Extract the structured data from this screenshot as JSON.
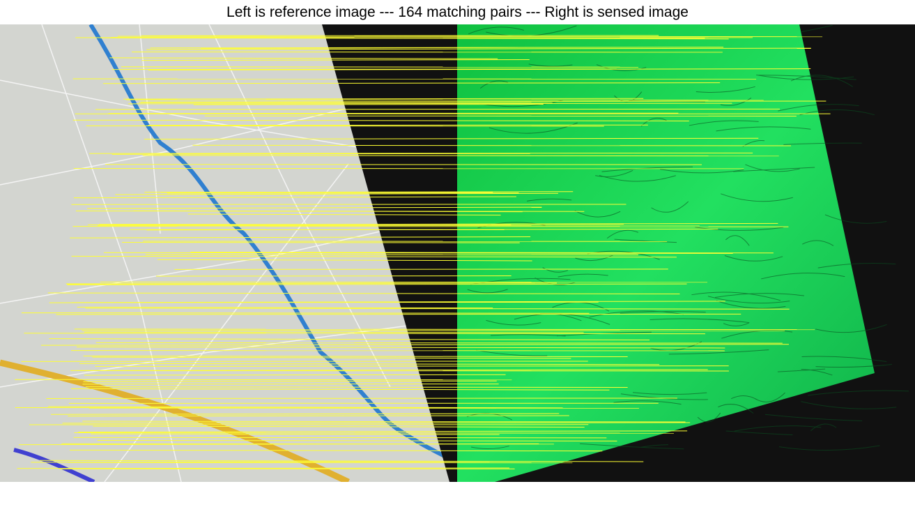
{
  "title": "Left is reference image --- 164 matching pairs --- Right is sensed image"
}
